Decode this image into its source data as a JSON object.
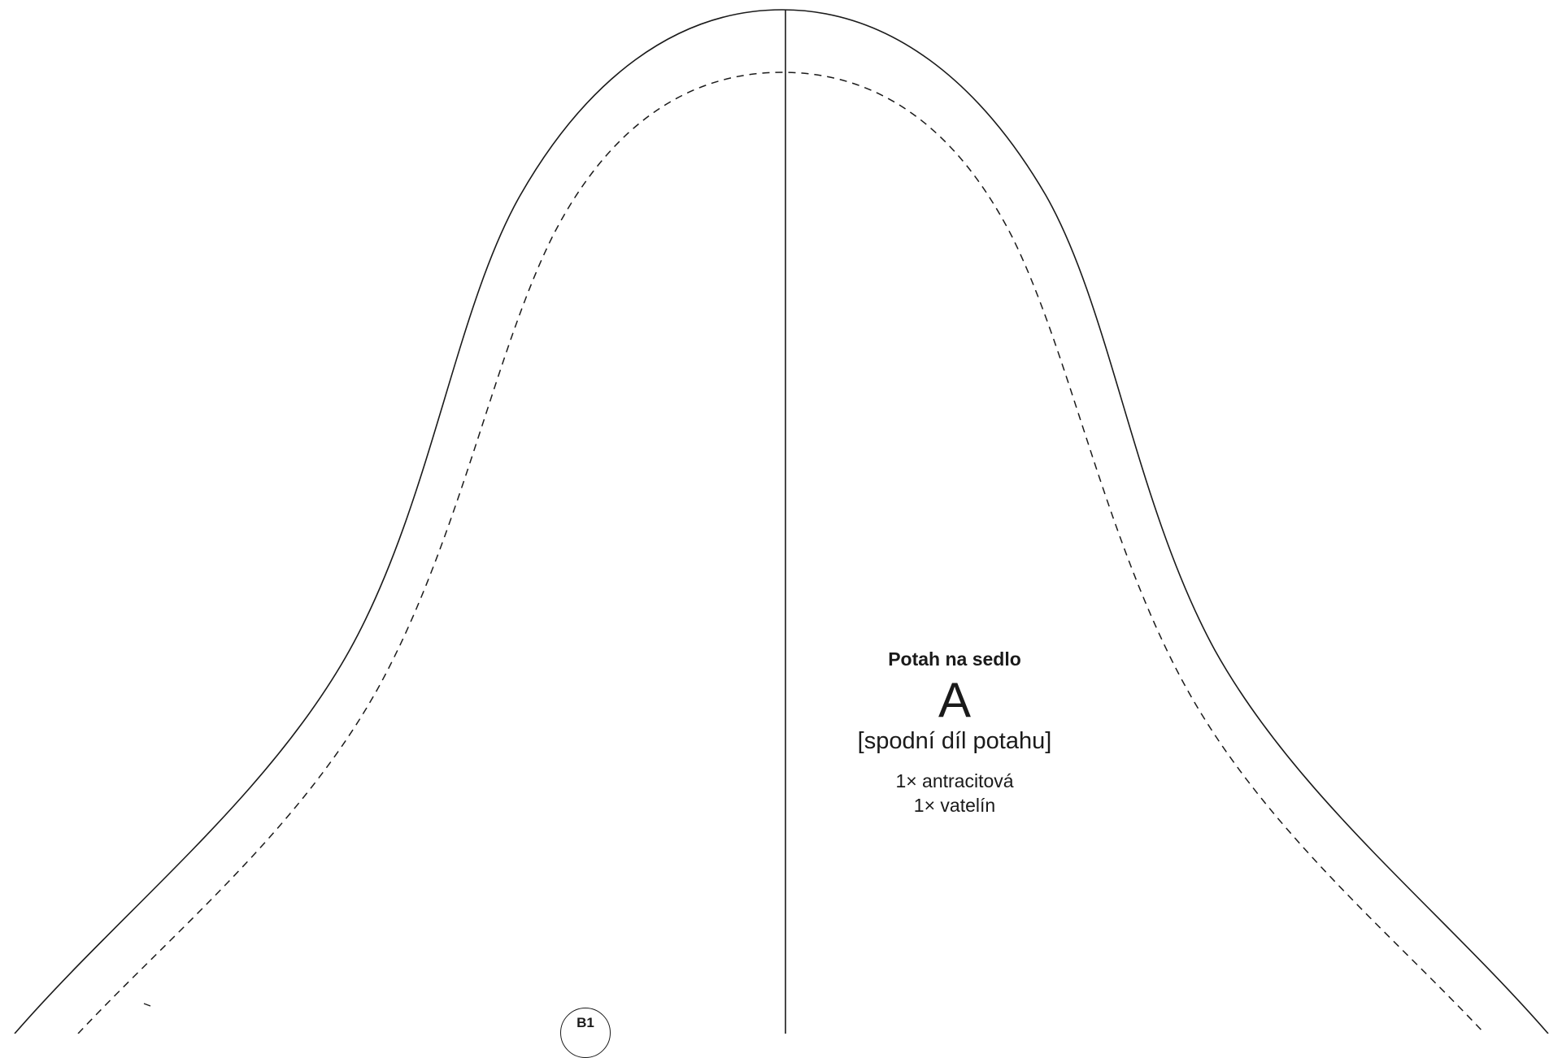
{
  "pattern": {
    "title": "Potah na sedlo",
    "piece_letter": "A",
    "piece_description": "[spodní díl potahu]",
    "quantities": [
      "1× antracitová",
      "1× vatelín"
    ],
    "marker_label": "B1"
  },
  "colors": {
    "line": "#1a1a1a",
    "background": "#ffffff"
  }
}
